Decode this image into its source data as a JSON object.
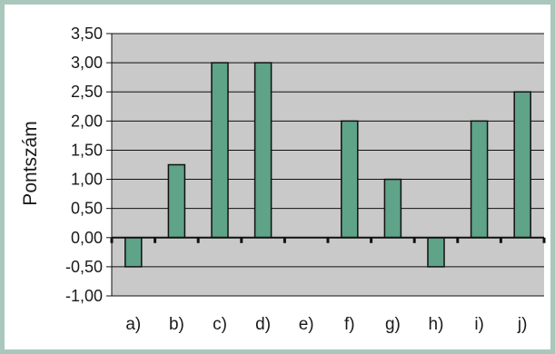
{
  "chart_data": {
    "type": "bar",
    "title": "",
    "xlabel": "",
    "ylabel": "Pontszám",
    "categories": [
      "a)",
      "b)",
      "c)",
      "d)",
      "e)",
      "f)",
      "g)",
      "h)",
      "i)",
      "j)"
    ],
    "values": [
      -0.5,
      1.25,
      3.0,
      3.0,
      0.0,
      2.0,
      1.0,
      -0.5,
      2.0,
      2.5
    ],
    "ylim": [
      -1.0,
      3.5
    ],
    "yticks": [
      "3,50",
      "3,00",
      "2,50",
      "2,00",
      "1,50",
      "1,00",
      "0,50",
      "0,00",
      "-0,50",
      "-1,00"
    ],
    "ytick_values": [
      3.5,
      3.0,
      2.5,
      2.0,
      1.5,
      1.0,
      0.5,
      0.0,
      -0.5,
      -1.0
    ],
    "grid": true,
    "colors": {
      "bar": "#5fa388",
      "bar_border": "#111111",
      "plot_bg": "#c9c9c9",
      "frame": "#a9c7bb",
      "gridline": "#111111"
    }
  }
}
